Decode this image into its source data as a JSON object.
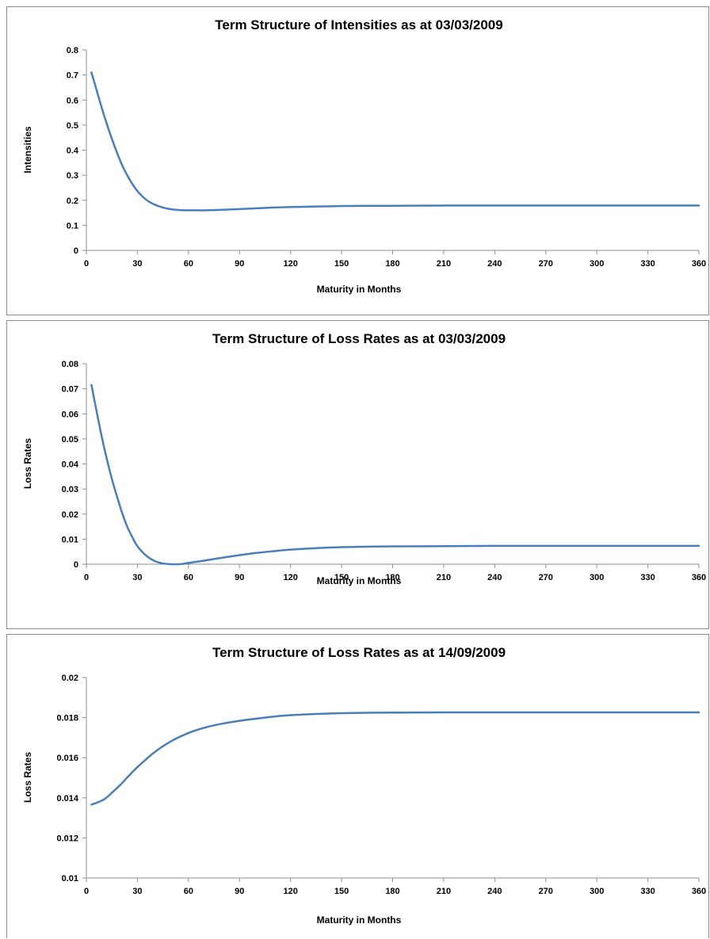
{
  "chart_data": [
    {
      "type": "line",
      "title": "Term Structure of Intensities as at 03/03/2009",
      "xlabel": "Maturity in Months",
      "ylabel": "Intensities",
      "xlim": [
        0,
        360
      ],
      "ylim": [
        0,
        0.8
      ],
      "x_ticks": [
        "0",
        "30",
        "60",
        "90",
        "120",
        "150",
        "180",
        "210",
        "240",
        "270",
        "300",
        "330",
        "360"
      ],
      "y_ticks": [
        "0",
        "0.1",
        "0.2",
        "0.3",
        "0.4",
        "0.5",
        "0.6",
        "0.7",
        "0.8"
      ],
      "grid": false,
      "series_color": "#4a7ebb",
      "series": [
        {
          "x": [
            3,
            6,
            9,
            12,
            15,
            18,
            21,
            24,
            27,
            30,
            33,
            36,
            40,
            45,
            50,
            55,
            60,
            65,
            70,
            80,
            90,
            100,
            110,
            120,
            135,
            150,
            165,
            180,
            210,
            240,
            270,
            300,
            330,
            360
          ],
          "values": [
            0.71,
            0.64,
            0.57,
            0.505,
            0.445,
            0.39,
            0.34,
            0.3,
            0.265,
            0.237,
            0.215,
            0.198,
            0.183,
            0.171,
            0.164,
            0.161,
            0.16,
            0.16,
            0.16,
            0.162,
            0.165,
            0.168,
            0.171,
            0.173,
            0.175,
            0.177,
            0.178,
            0.178,
            0.179,
            0.179,
            0.179,
            0.179,
            0.179,
            0.179
          ]
        }
      ]
    },
    {
      "type": "line",
      "title": "Term Structure of Loss Rates as at 03/03/2009",
      "xlabel": "Maturity in Months",
      "ylabel": "Loss Rates",
      "xlim": [
        0,
        360
      ],
      "ylim": [
        0,
        0.08
      ],
      "x_ticks": [
        "0",
        "30",
        "60",
        "90",
        "120",
        "150",
        "180",
        "210",
        "240",
        "270",
        "300",
        "330",
        "360"
      ],
      "y_ticks": [
        "0",
        "0.01",
        "0.02",
        "0.03",
        "0.04",
        "0.05",
        "0.06",
        "0.07",
        "0.08"
      ],
      "grid": false,
      "series_color": "#4a7ebb",
      "series": [
        {
          "x": [
            3,
            6,
            9,
            12,
            15,
            18,
            21,
            24,
            27,
            30,
            35,
            40,
            45,
            50,
            55,
            60,
            70,
            80,
            90,
            100,
            110,
            120,
            135,
            150,
            165,
            180,
            210,
            240,
            270,
            300,
            330,
            360
          ],
          "values": [
            0.0715,
            0.061,
            0.051,
            0.042,
            0.034,
            0.027,
            0.0205,
            0.015,
            0.0108,
            0.0072,
            0.0035,
            0.0013,
            0.0003,
            0.0,
            0.0,
            0.0005,
            0.0015,
            0.0026,
            0.0036,
            0.0045,
            0.0052,
            0.0058,
            0.0064,
            0.0068,
            0.007,
            0.0071,
            0.0072,
            0.0073,
            0.0073,
            0.0073,
            0.0073,
            0.0073
          ]
        }
      ]
    },
    {
      "type": "line",
      "title": "Term Structure of Loss Rates as at 14/09/2009",
      "xlabel": "Maturity in Months",
      "ylabel": "Loss Rates",
      "xlim": [
        0,
        360
      ],
      "ylim": [
        0.01,
        0.02
      ],
      "x_ticks": [
        "0",
        "30",
        "60",
        "90",
        "120",
        "150",
        "180",
        "210",
        "240",
        "270",
        "300",
        "330",
        "360"
      ],
      "y_ticks": [
        "0.01",
        "0.012",
        "0.014",
        "0.016",
        "0.018",
        "0.02"
      ],
      "grid": false,
      "series_color": "#4a7ebb",
      "series": [
        {
          "x": [
            3,
            10,
            15,
            20,
            25,
            30,
            40,
            50,
            60,
            70,
            80,
            90,
            100,
            110,
            120,
            135,
            150,
            165,
            180,
            210,
            240,
            270,
            300,
            330,
            360
          ],
          "values": [
            0.01366,
            0.0139,
            0.01425,
            0.01465,
            0.0151,
            0.01553,
            0.01627,
            0.01683,
            0.01723,
            0.01751,
            0.0177,
            0.01784,
            0.01795,
            0.01805,
            0.01812,
            0.01818,
            0.01822,
            0.01824,
            0.01825,
            0.01826,
            0.01826,
            0.01826,
            0.01826,
            0.01826,
            0.01826
          ]
        }
      ]
    }
  ]
}
